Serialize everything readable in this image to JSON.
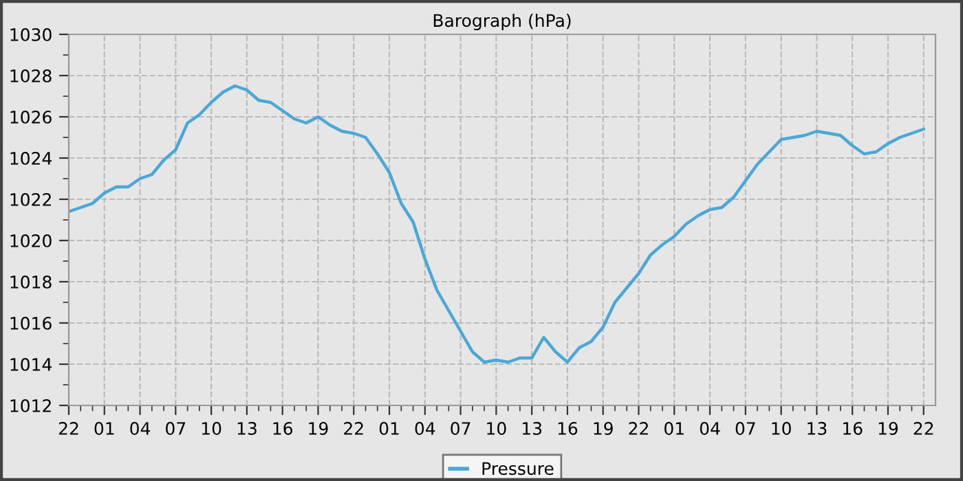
{
  "chart_data": {
    "type": "line",
    "title": "Barograph (hPa)",
    "categories": [
      "22",
      null,
      null,
      "01",
      null,
      null,
      "04",
      null,
      null,
      "07",
      null,
      null,
      "10",
      null,
      null,
      "13",
      null,
      null,
      "16",
      null,
      null,
      "19",
      null,
      null,
      "22",
      null,
      null,
      "01",
      null,
      null,
      "04",
      null,
      null,
      "07",
      null,
      null,
      "10",
      null,
      null,
      "13",
      null,
      null,
      "16",
      null,
      null,
      "19",
      null,
      null,
      "22",
      null,
      null,
      "01",
      null,
      null,
      "04",
      null,
      null,
      "07",
      null,
      null,
      "10",
      null,
      null,
      "13",
      null,
      null,
      "16",
      null,
      null,
      "19",
      null,
      null,
      "22"
    ],
    "ylim": [
      1012,
      1030
    ],
    "yticks": [
      1012,
      {
        "value": 1013,
        "label": null
      },
      1014,
      {
        "value": 1015,
        "label": null
      },
      1016,
      {
        "value": 1017,
        "label": null
      },
      1018,
      {
        "value": 1019,
        "label": null
      },
      1020,
      {
        "value": 1021,
        "label": null
      },
      1022,
      {
        "value": 1023,
        "label": null
      },
      1024,
      {
        "value": 1025,
        "label": null
      },
      1026,
      {
        "value": 1027,
        "label": null
      },
      1028,
      {
        "value": 1029,
        "label": null
      },
      1030
    ],
    "grid": true,
    "legend": "bottom",
    "marker": "none",
    "line_style": "solid",
    "series": [
      {
        "name": "Pressure",
        "color": "#4aa8d8",
        "values": [
          1021.4,
          1021.6,
          1021.8,
          1022.3,
          1022.6,
          1022.6,
          1023.0,
          1023.2,
          1023.9,
          1024.4,
          1025.7,
          1026.1,
          1026.7,
          1027.2,
          1027.5,
          1027.3,
          1026.8,
          1026.7,
          1026.3,
          1025.9,
          1025.7,
          1026.0,
          1025.6,
          1025.3,
          1025.2,
          1025.0,
          1024.2,
          1023.3,
          1021.8,
          1020.9,
          1019.1,
          1017.6,
          1016.6,
          1015.6,
          1014.6,
          1014.1,
          1014.2,
          1014.1,
          1014.3,
          1014.3,
          1015.3,
          1014.6,
          1014.1,
          1014.8,
          1015.1,
          1015.8,
          1017.0,
          1017.7,
          1018.4,
          1019.3,
          1019.8,
          1020.2,
          1020.8,
          1021.2,
          1021.5,
          1021.6,
          1022.1,
          1022.9,
          1023.7,
          1024.3,
          1024.9,
          1025.0,
          1025.1,
          1025.3,
          1025.2,
          1025.1,
          1024.6,
          1024.2,
          1024.3,
          1024.7,
          1025.0,
          1025.2,
          1025.4
        ]
      }
    ]
  }
}
